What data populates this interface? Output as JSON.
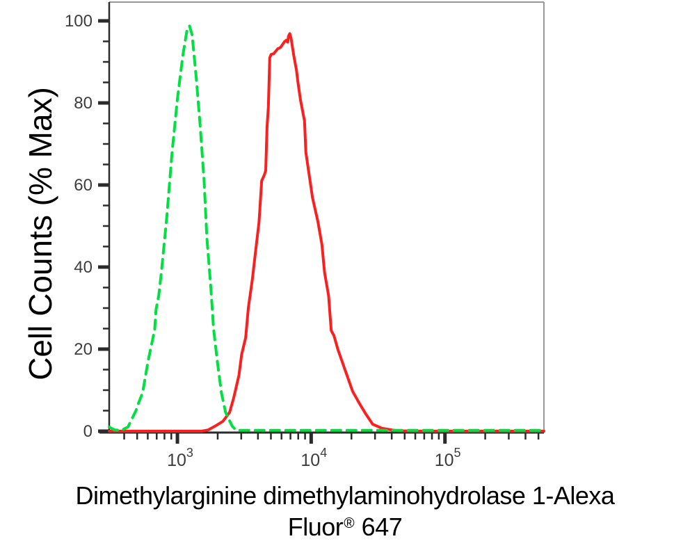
{
  "figure": {
    "xlabel_line1": "Dimethylarginine dimethylaminohydrolase 1-Alexa",
    "xlabel_line2_pre": "Fluor",
    "xlabel_line2_sup": "®",
    "xlabel_line2_post": " 647"
  },
  "chart_data": {
    "type": "line",
    "subtype": "flow-cytometry-histogram-overlay",
    "title": "",
    "ylabel": "Cell Counts (% Max)",
    "xlabel": "Dimethylarginine dimethylaminohydrolase 1-Alexa Fluor® 647",
    "x_axis": {
      "scale": "log10",
      "log_min": 2.49,
      "log_max": 5.74,
      "major_tick_exponents": [
        3,
        4,
        5
      ],
      "major_tick_labels": [
        "10^3",
        "10^4",
        "10^5"
      ],
      "minor_ticks": "multiples 2-9 within each decade"
    },
    "y_axis": {
      "min": 0,
      "max": 100,
      "major_ticks": [
        0,
        20,
        40,
        60,
        80,
        100
      ],
      "minor_step": 5
    },
    "grid": false,
    "legend": false,
    "colors": {
      "red_series": "#fb2020",
      "green_series": "#00e040",
      "axis": "#2b2b2b",
      "frame_light": "#999999",
      "tick_text": "#3d3d3d",
      "label_text": "#000000"
    },
    "series": [
      {
        "id": "red-solid",
        "label": "red solid curve",
        "color": "#fb2020",
        "line_style": "solid",
        "dash": "",
        "peak_x_log10": 3.84,
        "peak_y_pct": 96.9,
        "points": [
          [
            2.49,
            0
          ],
          [
            3.18,
            0
          ],
          [
            3.23,
            0.3
          ],
          [
            3.28,
            1.2
          ],
          [
            3.34,
            2.4
          ],
          [
            3.39,
            4.6
          ],
          [
            3.42,
            8
          ],
          [
            3.46,
            13.6
          ],
          [
            3.48,
            18.7
          ],
          [
            3.51,
            22.8
          ],
          [
            3.53,
            30
          ],
          [
            3.56,
            37
          ],
          [
            3.58,
            42.6
          ],
          [
            3.61,
            51
          ],
          [
            3.63,
            61
          ],
          [
            3.65,
            62.5
          ],
          [
            3.66,
            63.5
          ],
          [
            3.67,
            74
          ],
          [
            3.68,
            79
          ],
          [
            3.685,
            85
          ],
          [
            3.69,
            91
          ],
          [
            3.7,
            91.8
          ],
          [
            3.72,
            92
          ],
          [
            3.75,
            93.2
          ],
          [
            3.77,
            93.5
          ],
          [
            3.8,
            94.9
          ],
          [
            3.815,
            95.3
          ],
          [
            3.825,
            94.8
          ],
          [
            3.83,
            96.2
          ],
          [
            3.84,
            96.9
          ],
          [
            3.85,
            95.7
          ],
          [
            3.87,
            91.5
          ],
          [
            3.89,
            88
          ],
          [
            3.9,
            85.2
          ],
          [
            3.92,
            80.7
          ],
          [
            3.95,
            75.6
          ],
          [
            3.96,
            68
          ],
          [
            4.01,
            56.9
          ],
          [
            4.05,
            51.1
          ],
          [
            4.08,
            45.5
          ],
          [
            4.1,
            38.7
          ],
          [
            4.13,
            33
          ],
          [
            4.15,
            24.5
          ],
          [
            4.17,
            23.3
          ],
          [
            4.2,
            19.9
          ],
          [
            4.26,
            14.3
          ],
          [
            4.31,
            9.7
          ],
          [
            4.36,
            6.8
          ],
          [
            4.41,
            4.1
          ],
          [
            4.46,
            1.7
          ],
          [
            4.53,
            0.7
          ],
          [
            4.64,
            0.1
          ],
          [
            4.79,
            0
          ],
          [
            5.74,
            0
          ]
        ]
      },
      {
        "id": "green-dashed",
        "label": "green dashed curve",
        "color": "#00e040",
        "line_style": "dashed",
        "dash": "13 9",
        "peak_x_log10": 3.09,
        "peak_y_pct": 98.8,
        "points": [
          [
            2.49,
            1.0
          ],
          [
            2.53,
            0.3
          ],
          [
            2.58,
            0.2
          ],
          [
            2.63,
            1.0
          ],
          [
            2.69,
            5
          ],
          [
            2.71,
            6.9
          ],
          [
            2.74,
            9.4
          ],
          [
            2.78,
            17
          ],
          [
            2.81,
            21.6
          ],
          [
            2.83,
            24.8
          ],
          [
            2.84,
            29.6
          ],
          [
            2.86,
            33
          ],
          [
            2.88,
            38.7
          ],
          [
            2.92,
            52
          ],
          [
            2.96,
            68
          ],
          [
            3.0,
            81
          ],
          [
            3.04,
            91.5
          ],
          [
            3.07,
            97.4
          ],
          [
            3.09,
            98.8
          ],
          [
            3.11,
            96.6
          ],
          [
            3.14,
            86.4
          ],
          [
            3.17,
            74.4
          ],
          [
            3.2,
            60.8
          ],
          [
            3.22,
            47.2
          ],
          [
            3.25,
            34.8
          ],
          [
            3.27,
            25
          ],
          [
            3.3,
            16.5
          ],
          [
            3.33,
            9.2
          ],
          [
            3.36,
            4.6
          ],
          [
            3.41,
            1.2
          ],
          [
            3.44,
            0.2
          ],
          [
            5.74,
            0.2
          ]
        ]
      }
    ]
  }
}
